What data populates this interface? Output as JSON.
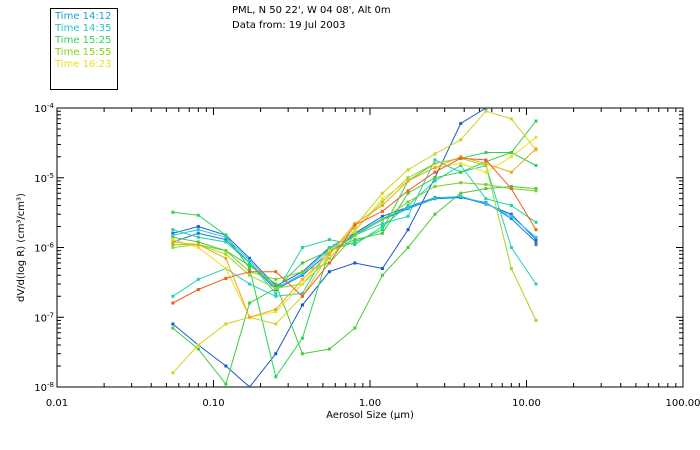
{
  "header": {
    "location": "PML, N 50 22', W 04 08', Alt 0m",
    "date": "Data from: 19 Jul 2003"
  },
  "legend": [
    {
      "label": "Time 14:12",
      "color": "#1aa0d8"
    },
    {
      "label": "Time 14:35",
      "color": "#22c8c8"
    },
    {
      "label": "Time 15:25",
      "color": "#2ad45a"
    },
    {
      "label": "Time 15:55",
      "color": "#8ad21a"
    },
    {
      "label": "Time 16:23",
      "color": "#e8e020"
    }
  ],
  "chart_data": {
    "type": "line",
    "xscale": "log",
    "yscale": "log",
    "xlim": [
      0.01,
      100
    ],
    "ylim": [
      1e-08,
      0.0001
    ],
    "xlabel": "Aerosol Size (µm)",
    "ylabel": "dV/d(log R) (cm³/cm³)",
    "xticks": [
      {
        "value": 0.01,
        "label": "0.01"
      },
      {
        "value": 0.1,
        "label": "0.10"
      },
      {
        "value": 1,
        "label": "1.00"
      },
      {
        "value": 10,
        "label": "10.00"
      },
      {
        "value": 100,
        "label": "100.00"
      }
    ],
    "yticks": [
      {
        "value": 1e-08,
        "base": "10",
        "exp": "-8"
      },
      {
        "value": 1e-07,
        "base": "10",
        "exp": "-7"
      },
      {
        "value": 1e-06,
        "base": "10",
        "exp": "-6"
      },
      {
        "value": 1e-05,
        "base": "10",
        "exp": "-5"
      },
      {
        "value": 0.0001,
        "base": "10",
        "exp": "-4"
      }
    ],
    "series": [
      {
        "name": "s1",
        "color": "#1464d8",
        "x": [
          0.055,
          0.08,
          0.12,
          0.17,
          0.25,
          0.37,
          0.55,
          0.8,
          1.2,
          1.75,
          2.6,
          3.8,
          5.5,
          8,
          11.5
        ],
        "y": [
          1.6e-06,
          2e-06,
          1.5e-06,
          7e-07,
          2.8e-07,
          4.5e-07,
          1e-06,
          1.6e-06,
          2.8e-06,
          3.8e-06,
          5.2e-06,
          5.3e-06,
          4.2e-06,
          3e-06,
          1.3e-06
        ]
      },
      {
        "name": "s2",
        "color": "#1a7adc",
        "x": [
          0.055,
          0.08,
          0.12,
          0.17,
          0.25,
          0.37,
          0.55,
          0.8,
          1.2,
          1.75,
          2.6,
          3.8,
          5.5,
          8,
          11.5
        ],
        "y": [
          1.2e-06,
          1.6e-06,
          1.3e-06,
          6e-07,
          2.5e-07,
          4e-07,
          8.5e-07,
          1.5e-06,
          2.5e-06,
          3.6e-06,
          5e-06,
          5.2e-06,
          4.4e-06,
          2.6e-06,
          1.2e-06
        ]
      },
      {
        "name": "s3",
        "color": "#1a56d0",
        "x": [
          0.055,
          0.08,
          0.12,
          0.17,
          0.25,
          0.37,
          0.55,
          0.8,
          1.2,
          1.75,
          2.6,
          3.8,
          5.5,
          8
        ],
        "y": [
          8e-08,
          4e-08,
          2e-08,
          1e-08,
          3e-08,
          1.5e-07,
          4.5e-07,
          6e-07,
          5e-07,
          1.8e-06,
          1e-05,
          6e-05,
          0.0001,
          0.00011
        ]
      },
      {
        "name": "s4",
        "color": "#28c8e0",
        "x": [
          0.055,
          0.08,
          0.12,
          0.17,
          0.25,
          0.37,
          0.55,
          0.8,
          1.2,
          1.75,
          2.6,
          3.8,
          5.5,
          8,
          11.5
        ],
        "y": [
          1.5e-06,
          1.8e-06,
          1.4e-06,
          6.5e-07,
          2.6e-07,
          4.2e-07,
          9.5e-07,
          1.55e-06,
          2.6e-06,
          3.7e-06,
          5.1e-06,
          5.4e-06,
          4.3e-06,
          2.8e-06,
          1.4e-06
        ]
      },
      {
        "name": "s5",
        "color": "#20d0c0",
        "x": [
          0.055,
          0.08,
          0.12,
          0.17,
          0.25,
          0.37,
          0.55,
          0.8,
          1.2,
          1.75,
          2.6,
          3.8,
          5.5,
          8,
          11.5
        ],
        "y": [
          2e-07,
          3.5e-07,
          5e-07,
          3e-07,
          2e-07,
          2.2e-07,
          1e-06,
          1.5e-06,
          2.2e-06,
          2.8e-06,
          1.8e-05,
          1.2e-05,
          1.5e-05,
          1e-06,
          3e-07
        ]
      },
      {
        "name": "s6",
        "color": "#22d2a0",
        "x": [
          0.055,
          0.08,
          0.12,
          0.17,
          0.25,
          0.37,
          0.55,
          0.8,
          1.2,
          1.75,
          2.6,
          3.8,
          5.5,
          8,
          11.5
        ],
        "y": [
          1.8e-06,
          1.4e-06,
          1.2e-06,
          6e-07,
          2.2e-07,
          1e-06,
          1.3e-06,
          1.1e-06,
          2e-06,
          4e-06,
          9e-06,
          1.5e-05,
          5e-06,
          4e-06,
          2.3e-06
        ]
      },
      {
        "name": "s7",
        "color": "#2ad45a",
        "x": [
          0.055,
          0.08,
          0.12,
          0.17,
          0.25,
          0.37,
          0.55,
          0.8,
          1.2,
          1.75,
          2.6,
          3.8,
          5.5,
          8,
          11.5
        ],
        "y": [
          3.2e-06,
          2.9e-06,
          1.5e-06,
          5e-07,
          1.4e-08,
          5e-08,
          9e-07,
          1.2e-06,
          1.8e-06,
          9e-06,
          1.6e-05,
          1.9e-05,
          2.3e-05,
          2.3e-05,
          1.5e-05
        ]
      },
      {
        "name": "s8",
        "color": "#3ccc40",
        "x": [
          0.055,
          0.08,
          0.12,
          0.17,
          0.25,
          0.37,
          0.55,
          0.8,
          1.2,
          1.75,
          2.6,
          3.8,
          5.5,
          8,
          11.5
        ],
        "y": [
          7e-08,
          3.5e-08,
          1.1e-08,
          1.6e-07,
          2.6e-07,
          6e-07,
          9e-07,
          1.3e-06,
          1.6e-06,
          6e-06,
          1e-05,
          1.2e-05,
          1.7e-05,
          2.3e-05,
          6.5e-05
        ]
      },
      {
        "name": "s9",
        "color": "#50c83c",
        "x": [
          0.055,
          0.08,
          0.12,
          0.17,
          0.25,
          0.37,
          0.55,
          0.8,
          1.2,
          1.75,
          2.6,
          3.8,
          5.5,
          8,
          11.5
        ],
        "y": [
          1.4e-06,
          1.2e-06,
          9e-07,
          5.5e-07,
          3e-07,
          3e-08,
          3.5e-08,
          7e-08,
          4e-07,
          1e-06,
          3e-06,
          6e-06,
          7e-06,
          7.5e-06,
          7e-06
        ]
      },
      {
        "name": "s10",
        "color": "#7ad024",
        "x": [
          0.055,
          0.08,
          0.12,
          0.17,
          0.25,
          0.37,
          0.55,
          0.8,
          1.2,
          1.75,
          2.6,
          3.8,
          5.5,
          8,
          11.5
        ],
        "y": [
          1.1e-06,
          1.1e-06,
          9e-07,
          4.5e-07,
          3.5e-07,
          4.5e-07,
          6e-07,
          1.5e-06,
          2.5e-06,
          4.5e-06,
          7.5e-06,
          8.5e-06,
          8e-06,
          7e-06,
          6.5e-06
        ]
      },
      {
        "name": "s11",
        "color": "#a0d81e",
        "x": [
          0.055,
          0.08,
          0.12,
          0.17,
          0.25,
          0.37,
          0.55,
          0.8,
          1.2,
          1.75,
          2.6,
          3.8,
          5.5,
          8,
          11.5
        ],
        "y": [
          1e-06,
          1.1e-06,
          8e-07,
          4e-07,
          2.6e-07,
          3e-07,
          7e-07,
          1.8e-06,
          4.5e-06,
          1e-05,
          1.6e-05,
          1.9e-05,
          1.5e-05,
          5e-07,
          9e-08
        ]
      },
      {
        "name": "s12",
        "color": "#d2d222",
        "x": [
          0.055,
          0.08,
          0.12,
          0.17,
          0.25,
          0.37,
          0.55,
          0.8,
          1.2,
          1.75,
          2.6,
          3.8,
          5.5,
          8,
          11.5
        ],
        "y": [
          1.6e-08,
          4e-08,
          8e-08,
          1e-07,
          8e-08,
          2e-07,
          8e-07,
          2e-06,
          6e-06,
          1.3e-05,
          2.2e-05,
          3.5e-05,
          9e-05,
          7e-05,
          2.5e-05
        ]
      },
      {
        "name": "s13",
        "color": "#eee020",
        "x": [
          0.055,
          0.08,
          0.12,
          0.17,
          0.25,
          0.37,
          0.55,
          0.8,
          1.2,
          1.75,
          2.6,
          3.8,
          5.5,
          8,
          11.5
        ],
        "y": [
          1.3e-06,
          1e-06,
          5e-07,
          1e-07,
          1.2e-07,
          3e-07,
          9e-07,
          1.7e-06,
          5e-06,
          9e-06,
          1.4e-05,
          1.6e-05,
          1.2e-05,
          2e-05,
          3.8e-05
        ]
      },
      {
        "name": "s14",
        "color": "#f0a818",
        "x": [
          0.055,
          0.08,
          0.12,
          0.17,
          0.25,
          0.37,
          0.55,
          0.8,
          1.2,
          1.75,
          2.6,
          3.8,
          5.5,
          8,
          11.5
        ],
        "y": [
          1.2e-06,
          1.1e-06,
          7e-07,
          1e-07,
          1.3e-07,
          3.5e-07,
          8e-07,
          2.2e-06,
          4e-06,
          9e-06,
          1.4e-05,
          2e-05,
          1.6e-05,
          1.2e-05,
          2.6e-05
        ]
      },
      {
        "name": "s15",
        "color": "#ee6020",
        "x": [
          0.055,
          0.08,
          0.12,
          0.17,
          0.25,
          0.37,
          0.55,
          0.8,
          1.2,
          1.75,
          2.6,
          3.8,
          5.5,
          8,
          11.5
        ],
        "y": [
          1.6e-07,
          2.5e-07,
          3.6e-07,
          4.5e-07,
          4.5e-07,
          2e-07,
          6e-07,
          2.1e-06,
          3.3e-06,
          6.5e-06,
          1.2e-05,
          1.9e-05,
          1.8e-05,
          7e-06,
          1.8e-06
        ]
      },
      {
        "name": "s16",
        "color": "#707070",
        "x": [
          11.5
        ],
        "y": [
          1.1e-06
        ]
      }
    ]
  }
}
